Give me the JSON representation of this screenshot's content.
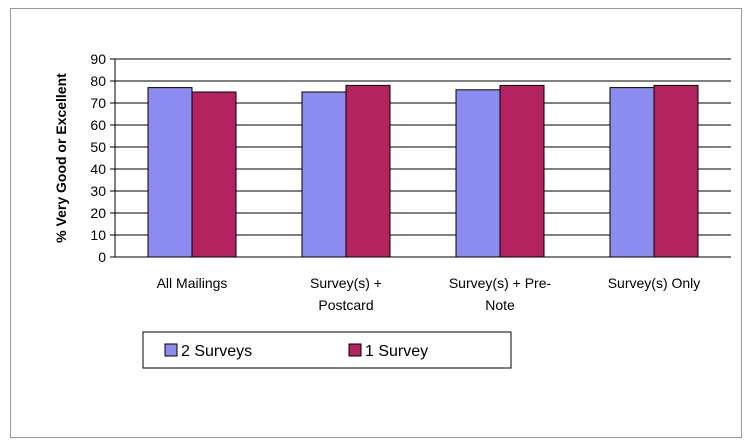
{
  "chart_data": {
    "type": "bar",
    "title": "",
    "xlabel": "",
    "ylabel": "% Very Good or Excellent",
    "ylim": [
      0,
      90
    ],
    "yticks": [
      0,
      10,
      20,
      30,
      40,
      50,
      60,
      70,
      80,
      90
    ],
    "grid": true,
    "legend_position": "bottom-center",
    "categories": [
      [
        "All Mailings"
      ],
      [
        "Survey(s) +",
        "Postcard"
      ],
      [
        "Survey(s) + Pre-",
        "Note"
      ],
      [
        "Survey(s) Only"
      ]
    ],
    "series": [
      {
        "name": "2 Surveys",
        "values": [
          77,
          75,
          76,
          77
        ],
        "color": "#8c8cf0"
      },
      {
        "name": "1 Survey",
        "values": [
          75,
          78,
          78,
          78
        ],
        "color": "#b3235f"
      }
    ]
  }
}
